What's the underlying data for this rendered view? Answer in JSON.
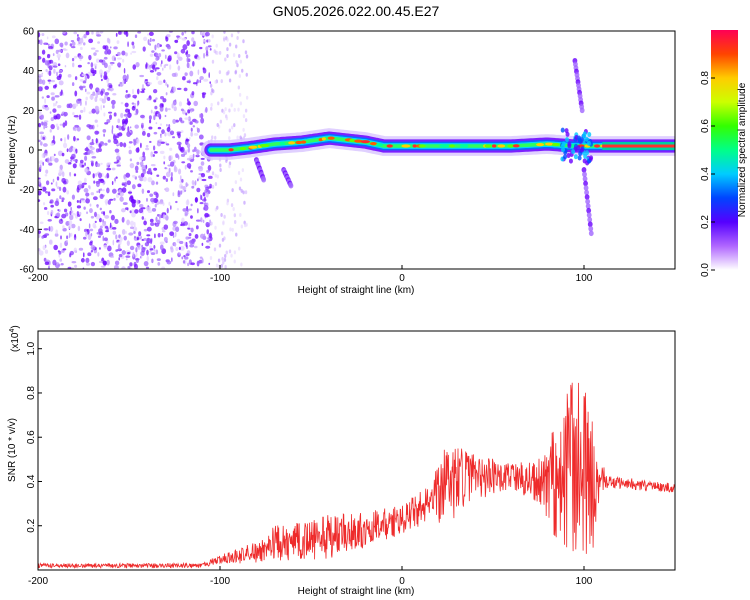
{
  "title": "GN05.2026.022.00.45.E27",
  "chart_data": [
    {
      "type": "heatmap",
      "name": "spectrogram",
      "xlabel": "Height of straight line (km)",
      "ylabel": "Frequency (Hz)",
      "xlim": [
        -200,
        150
      ],
      "ylim": [
        -60,
        60
      ],
      "xticks": [
        -200,
        -100,
        0,
        100
      ],
      "yticks": [
        -60,
        -40,
        -20,
        0,
        20,
        40,
        60
      ],
      "description_features": {
        "noise_region_km": [
          -200,
          -105
        ],
        "sparse_noise_region_km": [
          -105,
          -85
        ],
        "signal_track": [
          {
            "x": -105,
            "y": 0
          },
          {
            "x": -95,
            "y": 0
          },
          {
            "x": -85,
            "y": 1
          },
          {
            "x": -70,
            "y": 3
          },
          {
            "x": -55,
            "y": 4
          },
          {
            "x": -40,
            "y": 6
          },
          {
            "x": -30,
            "y": 5
          },
          {
            "x": -20,
            "y": 4
          },
          {
            "x": -10,
            "y": 2
          },
          {
            "x": 0,
            "y": 2
          },
          {
            "x": 20,
            "y": 2
          },
          {
            "x": 40,
            "y": 2
          },
          {
            "x": 60,
            "y": 2
          },
          {
            "x": 80,
            "y": 3
          },
          {
            "x": 95,
            "y": 2
          },
          {
            "x": 110,
            "y": 2
          },
          {
            "x": 150,
            "y": 2
          }
        ],
        "side_features": [
          {
            "x": 95,
            "y_from": 45,
            "y_to": 20
          },
          {
            "x": 100,
            "y_from": -10,
            "y_to": -42
          },
          {
            "x": -80,
            "y_from": -5,
            "y_to": -15
          },
          {
            "x": -65,
            "y_from": -10,
            "y_to": -18
          }
        ]
      },
      "colorbar": {
        "label": "Normalized spectral amplitude",
        "range": [
          0,
          1
        ],
        "ticks": [
          "0.0",
          "0.2",
          "0.4",
          "0.6",
          "0.8"
        ],
        "tick_values": [
          0.0,
          0.2,
          0.4,
          0.6,
          0.8
        ]
      }
    },
    {
      "type": "line",
      "name": "snr",
      "xlabel": "Height of straight line (km)",
      "ylabel": "SNR (10 * v/v)",
      "multiplier": "(x10",
      "multiplier_exp": "4",
      "multiplier_close": ")",
      "xlim": [
        -200,
        150
      ],
      "ylim": [
        0,
        1.08
      ],
      "xticks": [
        -200,
        -100,
        0,
        100
      ],
      "yticks": [
        "0.2",
        "0.4",
        "0.6",
        "0.8",
        "1.0"
      ],
      "ytick_values": [
        0.2,
        0.4,
        0.6,
        0.8,
        1.0
      ],
      "color": "#ee2b2b",
      "envelope": [
        {
          "x": -200,
          "base": 0.02,
          "amp": 0.01
        },
        {
          "x": -110,
          "base": 0.02,
          "amp": 0.01
        },
        {
          "x": -100,
          "base": 0.05,
          "amp": 0.02
        },
        {
          "x": -80,
          "base": 0.08,
          "amp": 0.05
        },
        {
          "x": -70,
          "base": 0.12,
          "amp": 0.08
        },
        {
          "x": -40,
          "base": 0.15,
          "amp": 0.1
        },
        {
          "x": -20,
          "base": 0.18,
          "amp": 0.08
        },
        {
          "x": 0,
          "base": 0.23,
          "amp": 0.07
        },
        {
          "x": 15,
          "base": 0.3,
          "amp": 0.08
        },
        {
          "x": 25,
          "base": 0.38,
          "amp": 0.2
        },
        {
          "x": 35,
          "base": 0.42,
          "amp": 0.12
        },
        {
          "x": 60,
          "base": 0.42,
          "amp": 0.06
        },
        {
          "x": 75,
          "base": 0.4,
          "amp": 0.1
        },
        {
          "x": 85,
          "base": 0.42,
          "amp": 0.3
        },
        {
          "x": 95,
          "base": 0.45,
          "amp": 0.5
        },
        {
          "x": 105,
          "base": 0.4,
          "amp": 0.3
        },
        {
          "x": 112,
          "base": 0.4,
          "amp": 0.03
        },
        {
          "x": 150,
          "base": 0.37,
          "amp": 0.02
        }
      ]
    }
  ]
}
